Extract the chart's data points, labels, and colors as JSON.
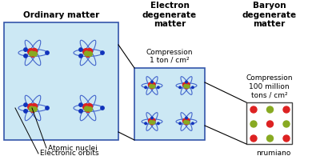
{
  "title_ordinary": "Ordinary matter",
  "title_electron": "Electron\ndegenerate\nmatter",
  "title_baryon": "Baryon\ndegenerate\nmatter",
  "compression_electron": "Compression\n1 ton / cm²",
  "compression_baryon": "Compression\n100 million\ntons / cm²",
  "label_nuclei": "Atomic nuclei",
  "label_orbits": "Electronic orbits",
  "watermark": "nrumiano",
  "bg_color": "#ffffff",
  "box_fill_ordinary": "#cce8f4",
  "box_fill_electron": "#cce8f4",
  "box_border_ordinary": "#3355aa",
  "box_border_electron": "#3355aa",
  "box_border_baryon": "#444444",
  "orbit_color": "#4466cc",
  "nucleus_red": "#dd2222",
  "nucleus_green": "#88aa22",
  "electron_color": "#1133bb",
  "title_fontsize": 7.5,
  "label_fontsize": 6.5,
  "compression_fontsize": 6.5,
  "watermark_fontsize": 6.5
}
